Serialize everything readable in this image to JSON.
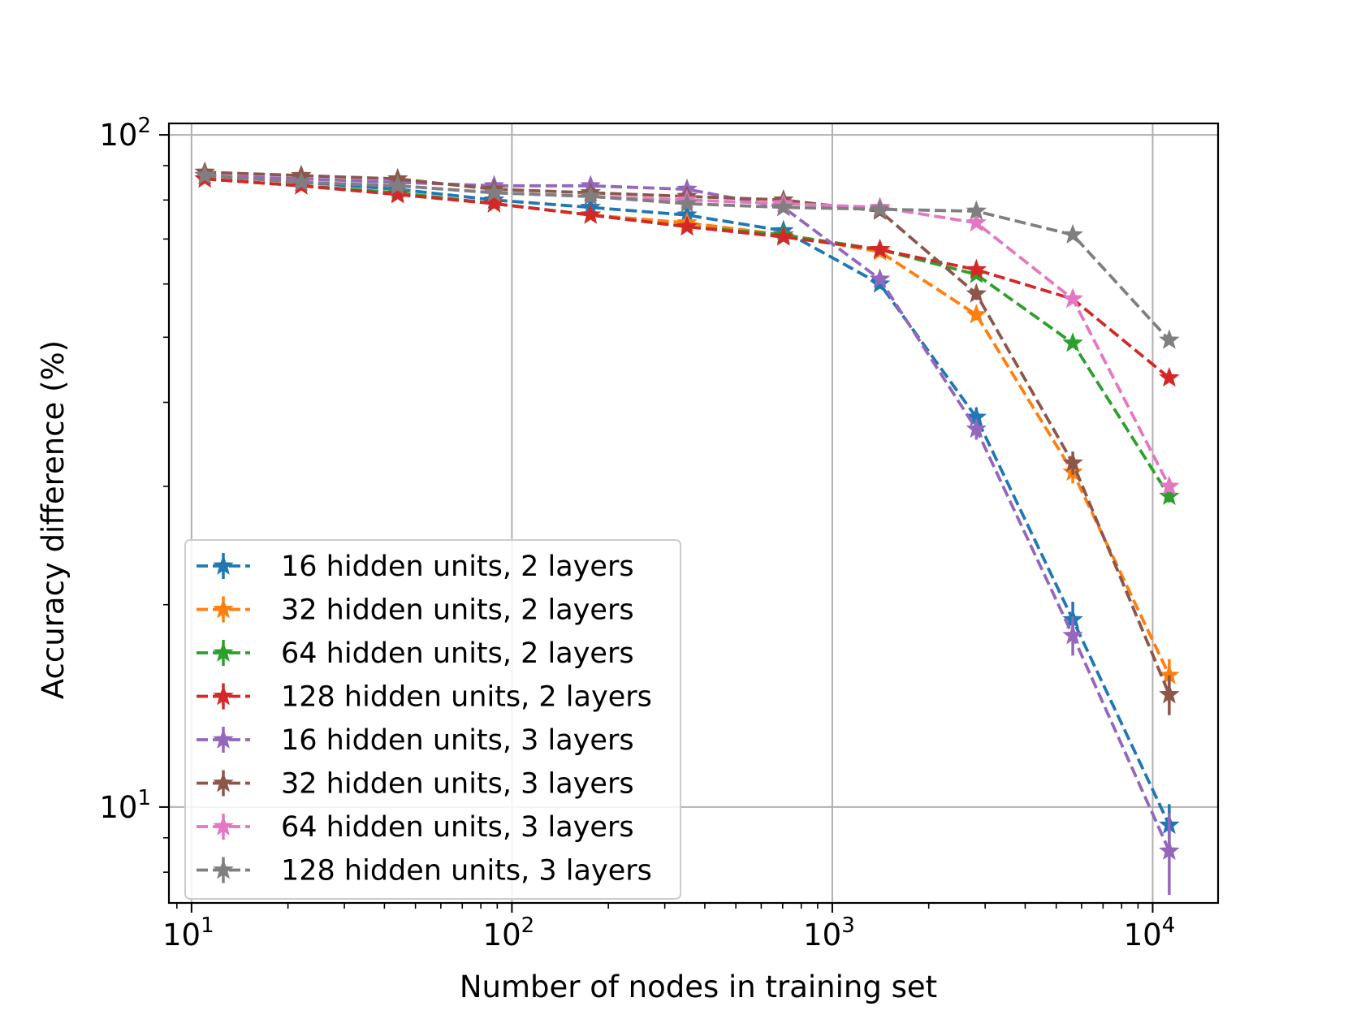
{
  "chart_data": {
    "type": "line",
    "title": "",
    "xlabel": "Number of nodes in training set",
    "ylabel": "Accuracy difference (%)",
    "xscale": "log",
    "yscale": "log",
    "xlim": [
      8.5,
      16000
    ],
    "ylim": [
      7.2,
      104
    ],
    "grid": true,
    "legend_position": "lower-left",
    "x": [
      11,
      22,
      44,
      88,
      176,
      352,
      704,
      1408,
      2816,
      5632,
      11264
    ],
    "x_ticks": [
      {
        "value": 10,
        "base": "10",
        "exp": "1"
      },
      {
        "value": 100,
        "base": "10",
        "exp": "2"
      },
      {
        "value": 1000,
        "base": "10",
        "exp": "3"
      },
      {
        "value": 10000,
        "base": "10",
        "exp": "4"
      }
    ],
    "y_ticks": [
      {
        "value": 10,
        "base": "10",
        "exp": "1"
      },
      {
        "value": 100,
        "base": "10",
        "exp": "2"
      }
    ],
    "series": [
      {
        "name": "16 hidden units, 2 layers",
        "color": "#1f77b4",
        "values": [
          87,
          85,
          83,
          80,
          78,
          76,
          72,
          60,
          38,
          19,
          9.4
        ],
        "errors": [
          0.8,
          0.6,
          0.6,
          0.6,
          0.6,
          0.6,
          0.8,
          1.0,
          1.3,
          1.2,
          0.7
        ]
      },
      {
        "name": "32 hidden units, 2 layers",
        "color": "#ff7f0e",
        "values": [
          86,
          84,
          82,
          79,
          76,
          74,
          71,
          67,
          54,
          31.5,
          15.7
        ],
        "errors": [
          0.6,
          0.5,
          0.5,
          0.5,
          0.5,
          0.5,
          0.6,
          0.8,
          1.0,
          1.2,
          0.9
        ]
      },
      {
        "name": "64 hidden units, 2 layers",
        "color": "#2ca02c",
        "values": [
          86,
          84,
          82,
          79,
          76,
          73,
          71,
          67.5,
          62,
          49,
          29
        ]
      },
      {
        "name": "128 hidden units, 2 layers",
        "color": "#d62728",
        "values": [
          86,
          84,
          81.5,
          79,
          76,
          73,
          70.5,
          67.5,
          63,
          57,
          43.5
        ]
      },
      {
        "name": "16 hidden units, 3 layers",
        "color": "#9467bd",
        "values": [
          87,
          86,
          85,
          84,
          84,
          83,
          78,
          61,
          36.5,
          18,
          8.6
        ],
        "errors": [
          0.8,
          0.6,
          0.6,
          0.6,
          0.6,
          0.6,
          0.8,
          1.0,
          1.3,
          1.2,
          1.2
        ]
      },
      {
        "name": "32 hidden units, 3 layers",
        "color": "#8c564b",
        "values": [
          88,
          87,
          86,
          83,
          82,
          81,
          80,
          77,
          58,
          32.5,
          14.7
        ],
        "errors": [
          0.7,
          0.6,
          0.6,
          0.6,
          0.6,
          0.6,
          0.7,
          0.9,
          1.2,
          1.3,
          1.0
        ]
      },
      {
        "name": "64 hidden units, 3 layers",
        "color": "#e377c2",
        "values": [
          87,
          85,
          84,
          82,
          81,
          80,
          79,
          78,
          74,
          57,
          30
        ]
      },
      {
        "name": "128 hidden units, 3 layers",
        "color": "#7f7f7f",
        "values": [
          87,
          85,
          84,
          82,
          81,
          79,
          78,
          77.5,
          77,
          71,
          49.5
        ]
      }
    ]
  }
}
